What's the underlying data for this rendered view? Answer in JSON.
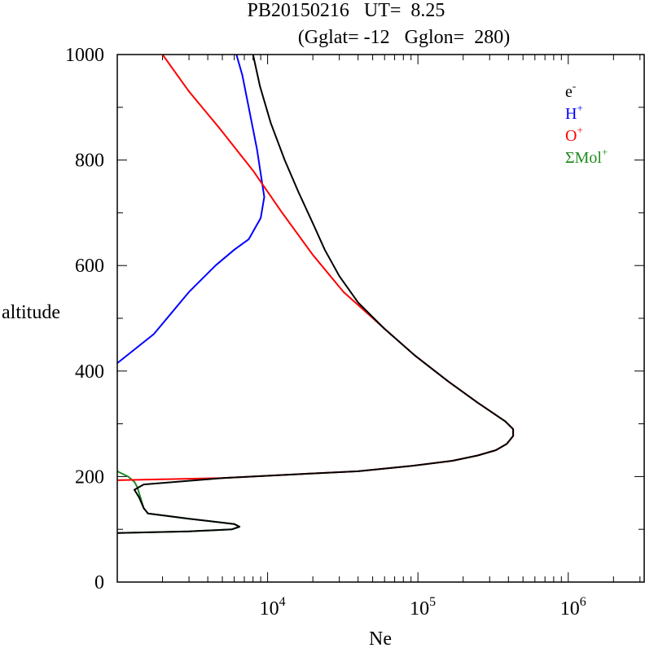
{
  "chart_data": {
    "type": "line",
    "title_line1": "PB20150216   UT=  8.25",
    "title_line2": "(Gglat= -12   Gglon=  280)",
    "xlabel": "Ne",
    "ylabel": "altitude",
    "x_scale": "log",
    "xlim": [
      1000,
      3200000
    ],
    "ylim": [
      0,
      1000
    ],
    "y_ticks": [
      "0",
      "200",
      "400",
      "600",
      "800",
      "1000"
    ],
    "x_ticks": [
      {
        "base": "10",
        "exp": "4",
        "value": 10000
      },
      {
        "base": "10",
        "exp": "5",
        "value": 100000
      },
      {
        "base": "10",
        "exp": "6",
        "value": 1000000
      }
    ],
    "legend_position": "top-right",
    "legend": [
      {
        "base": "e",
        "sup": "-",
        "color": "#000000"
      },
      {
        "base": "H",
        "sup": "+",
        "color": "#0000ff"
      },
      {
        "base": "O",
        "sup": "+",
        "color": "#ff0000"
      },
      {
        "base": "ΣMol",
        "sup": "+",
        "color": "#228b22"
      }
    ],
    "series": [
      {
        "color": "#228b22",
        "points": [
          [
            1000,
            210
          ],
          [
            1180,
            200
          ],
          [
            1300,
            190
          ],
          [
            1360,
            180
          ],
          [
            1500,
            140
          ],
          [
            1600,
            130
          ],
          [
            3000,
            120
          ],
          [
            6000,
            110
          ],
          [
            6500,
            105
          ],
          [
            5800,
            100
          ],
          [
            3000,
            96
          ],
          [
            1000,
            93
          ]
        ]
      },
      {
        "color": "#0000ff",
        "points": [
          [
            1000,
            415
          ],
          [
            1750,
            470
          ],
          [
            3000,
            550
          ],
          [
            4500,
            600
          ],
          [
            6000,
            630
          ],
          [
            7500,
            650
          ],
          [
            9000,
            690
          ],
          [
            9500,
            730
          ],
          [
            8500,
            820
          ],
          [
            6800,
            960
          ],
          [
            6200,
            1000
          ]
        ]
      },
      {
        "color": "#ff0000",
        "points": [
          [
            1000,
            193
          ],
          [
            5000,
            197
          ],
          [
            17000,
            205
          ],
          [
            40000,
            210
          ],
          [
            90000,
            220
          ],
          [
            170000,
            230
          ],
          [
            250000,
            240
          ],
          [
            330000,
            250
          ],
          [
            390000,
            262
          ],
          [
            430000,
            277
          ],
          [
            430000,
            290
          ],
          [
            380000,
            305
          ],
          [
            250000,
            340
          ],
          [
            160000,
            380
          ],
          [
            95000,
            430
          ],
          [
            55000,
            490
          ],
          [
            32000,
            550
          ],
          [
            20000,
            620
          ],
          [
            12500,
            700
          ],
          [
            8000,
            780
          ],
          [
            4800,
            860
          ],
          [
            3000,
            930
          ],
          [
            2000,
            1000
          ]
        ]
      },
      {
        "color": "#000000",
        "points": [
          [
            1000,
            93
          ],
          [
            3000,
            96
          ],
          [
            5800,
            100
          ],
          [
            6500,
            105
          ],
          [
            6000,
            110
          ],
          [
            3000,
            120
          ],
          [
            1600,
            130
          ],
          [
            1500,
            140
          ],
          [
            1400,
            160
          ],
          [
            1300,
            175
          ],
          [
            1500,
            185
          ],
          [
            5000,
            197
          ],
          [
            17000,
            205
          ],
          [
            40000,
            210
          ],
          [
            90000,
            220
          ],
          [
            170000,
            230
          ],
          [
            250000,
            240
          ],
          [
            330000,
            250
          ],
          [
            390000,
            262
          ],
          [
            430000,
            277
          ],
          [
            430000,
            290
          ],
          [
            380000,
            305
          ],
          [
            250000,
            340
          ],
          [
            160000,
            380
          ],
          [
            95000,
            430
          ],
          [
            60000,
            480
          ],
          [
            40000,
            530
          ],
          [
            30000,
            580
          ],
          [
            24000,
            630
          ],
          [
            20000,
            680
          ],
          [
            16000,
            740
          ],
          [
            13000,
            800
          ],
          [
            10500,
            870
          ],
          [
            8900,
            940
          ],
          [
            8000,
            1000
          ]
        ]
      }
    ]
  }
}
